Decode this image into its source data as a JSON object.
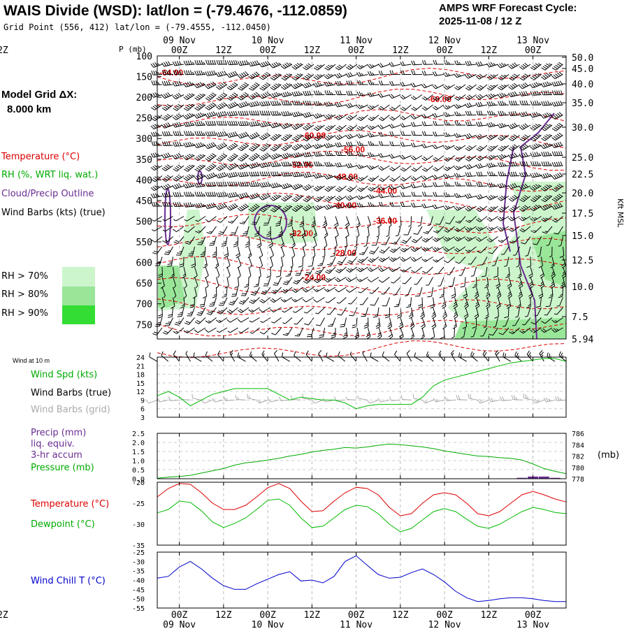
{
  "header": {
    "title": "WAIS Divide (WSD):  lat/lon = (-79.4676, -112.0859)",
    "subtitle": "Grid Point (556, 412) lat/lon = (-79.4555, -112.0450)",
    "cycle_label": "AMPS WRF Forecast Cycle:",
    "cycle_value": "2025-11-08 / 12  Z"
  },
  "model_grid": {
    "label": "Model Grid ΔX:",
    "value": "8.000 km"
  },
  "legend": {
    "temperature": "Temperature (°C)",
    "rh": "RH (%, WRT liq. wat.)",
    "cloud": "Cloud/Precip Outline",
    "wind": "Wind Barbs (kts) (true)",
    "rh70": "RH > 70%",
    "rh80": "RH > 80%",
    "rh90": "RH > 90%"
  },
  "colors": {
    "temperature": "#dd0000",
    "rh": "#00bb00",
    "cloud": "#6a2c91",
    "wind_grid": "#aaaaaa",
    "pressure": "#00aa00",
    "dewpoint": "#00bb00",
    "windchill": "#0000cc",
    "rh70": "#ccf5cc",
    "rh80": "#99e699",
    "rh90": "#33dd33"
  },
  "time_axis": {
    "hours": [
      "00Z",
      "12Z",
      "00Z",
      "12Z",
      "00Z",
      "12Z",
      "00Z",
      "12Z",
      "00Z",
      "12Z"
    ],
    "dates": [
      "09 Nov",
      "",
      "10 Nov",
      "",
      "11 Nov",
      "",
      "12 Nov",
      "",
      "13 Nov",
      ""
    ]
  },
  "chart_data": [
    {
      "type": "contour",
      "name": "cross-section",
      "ylabel": "P (mb)",
      "ylabel_right": "Kft MSL",
      "x_range_hours": [
        9,
        120
      ],
      "p_range": [
        100,
        785
      ],
      "p_ticks": [
        "100",
        "150",
        "200",
        "250",
        "300",
        "350",
        "400",
        "450",
        "500",
        "550",
        "600",
        "650",
        "700",
        "750"
      ],
      "kft_ticks": [
        "50.0",
        "45.0",
        "40.0",
        "35.0",
        "30.0",
        "25.0",
        "22.5",
        "20.0",
        "17.5",
        "15.0",
        "12.5",
        "10.0",
        "7.5",
        "5.94"
      ],
      "temp_labels": [
        "-64.00",
        "-60.00",
        "-60.00",
        "-56.00",
        "-52.00",
        "-48.00",
        "-44.00",
        "-40.00",
        "-36.00",
        "-32.00",
        "-28.00",
        "-24.00"
      ]
    },
    {
      "type": "line",
      "name": "wind-10m",
      "header": "Wind at 10 m",
      "labels": {
        "speed": "Wind Spd (kts)",
        "barbs_true": "Wind Barbs (true)",
        "barbs_grid": "Wind Barbs (grid)"
      },
      "ylim": [
        3,
        24
      ],
      "y_ticks": [
        "24",
        "21",
        "18",
        "15",
        "12",
        "9",
        "6",
        "3"
      ],
      "x_hours": [
        9,
        12,
        15,
        18,
        21,
        24,
        27,
        30,
        33,
        36,
        39,
        42,
        45,
        48,
        51,
        54,
        57,
        60,
        63,
        66,
        69,
        72,
        75,
        78,
        81,
        84,
        87,
        90,
        93,
        96,
        99,
        102,
        105,
        108,
        111,
        114,
        117,
        120
      ],
      "speed": [
        10.5,
        12,
        10,
        7,
        9,
        11,
        12,
        13,
        13,
        13,
        13,
        11,
        9,
        10,
        9.5,
        9,
        9,
        8,
        6,
        7,
        7.5,
        7.5,
        7.5,
        7.5,
        10,
        14,
        16,
        17,
        18,
        19,
        20,
        21,
        22,
        22.5,
        23,
        23.5,
        23.5,
        22.5
      ]
    },
    {
      "type": "line",
      "name": "precip-pressure",
      "labels": {
        "precip": "Precip (mm)",
        "liq": "liq. equiv.",
        "accum": "3-hr accum",
        "pressure": "Pressure (mb)"
      },
      "left_ticks": [
        "2.5",
        "2.0",
        "1.5",
        "1.0",
        "0.5",
        "0.0"
      ],
      "right_ticks": [
        "786",
        "784",
        "782",
        "780",
        "778"
      ],
      "right_unit": "(mb)",
      "pressure_lim": [
        778,
        786
      ],
      "x_hours": [
        9,
        12,
        15,
        18,
        21,
        24,
        27,
        30,
        33,
        36,
        39,
        42,
        45,
        48,
        51,
        54,
        57,
        60,
        63,
        66,
        69,
        72,
        75,
        78,
        81,
        84,
        87,
        90,
        93,
        96,
        99,
        102,
        105,
        108,
        111,
        114,
        117,
        120
      ],
      "pressure": [
        778.1,
        778.3,
        778.4,
        778.6,
        779.0,
        779.4,
        779.8,
        780.4,
        780.8,
        781.0,
        781.3,
        781.6,
        782.0,
        782.3,
        782.7,
        783.0,
        783.2,
        783.5,
        783.4,
        783.6,
        783.9,
        784.1,
        784.0,
        783.8,
        783.6,
        783.3,
        782.9,
        782.6,
        782.3,
        782.0,
        781.9,
        781.7,
        781.6,
        781.3,
        780.6,
        779.8,
        779.3,
        778.9
      ],
      "precip_hours": [
        108,
        111,
        114,
        117
      ],
      "precip": [
        0.05,
        0.12,
        0.12,
        0.05
      ]
    },
    {
      "type": "line",
      "name": "temperature-dewpoint",
      "labels": {
        "temperature": "Temperature (°C)",
        "dewpoint": "Dewpoint (°C)"
      },
      "ylim": [
        -35,
        -20
      ],
      "y_ticks": [
        "-20",
        "-25",
        "-30",
        "-35"
      ],
      "x_hours": [
        9,
        12,
        15,
        18,
        21,
        24,
        27,
        30,
        33,
        36,
        39,
        42,
        45,
        48,
        51,
        54,
        57,
        60,
        63,
        66,
        69,
        72,
        75,
        78,
        81,
        84,
        87,
        90,
        93,
        96,
        99,
        102,
        105,
        108,
        111,
        114,
        117,
        120
      ],
      "temperature": [
        -23.5,
        -21.5,
        -20.3,
        -20.5,
        -22.5,
        -25,
        -26.5,
        -26.5,
        -25.5,
        -23.5,
        -21.3,
        -20.3,
        -21.5,
        -24.5,
        -27,
        -26.8,
        -24.5,
        -22.5,
        -21.2,
        -21.5,
        -23,
        -26,
        -28,
        -27.5,
        -25,
        -23,
        -22.5,
        -23,
        -25,
        -27.5,
        -28,
        -27,
        -25,
        -23,
        -22.2,
        -23,
        -24,
        -24.7
      ],
      "dewpoint": [
        -27.3,
        -26.5,
        -24.5,
        -24.8,
        -26.8,
        -29.5,
        -30.8,
        -29.8,
        -28.5,
        -26.5,
        -24.3,
        -24,
        -25.5,
        -28.5,
        -30.8,
        -30.5,
        -28.5,
        -26.5,
        -25.5,
        -25.8,
        -27.5,
        -30,
        -31.8,
        -31,
        -29,
        -27,
        -26.3,
        -27,
        -28.8,
        -30.5,
        -31,
        -30,
        -28.5,
        -27,
        -26,
        -26.5,
        -27.2,
        -27.5
      ]
    },
    {
      "type": "line",
      "name": "wind-chill",
      "labels": {
        "windchill": "Wind Chill T (°C)"
      },
      "ylim": [
        -55,
        -25
      ],
      "y_ticks": [
        "-25",
        "-30",
        "-35",
        "-40",
        "-45",
        "-50",
        "-55"
      ],
      "x_hours": [
        9,
        12,
        15,
        18,
        21,
        24,
        27,
        30,
        33,
        36,
        39,
        42,
        45,
        48,
        51,
        54,
        57,
        60,
        63,
        66,
        69,
        72,
        75,
        78,
        81,
        84,
        87,
        90,
        93,
        96,
        99,
        102,
        105,
        108,
        111,
        114,
        117,
        120
      ],
      "windchill": [
        -39,
        -38,
        -33,
        -30,
        -34,
        -39,
        -43,
        -45,
        -45,
        -42,
        -39.5,
        -37,
        -35.5,
        -40.5,
        -40,
        -41.5,
        -38,
        -30,
        -27,
        -32,
        -37,
        -39,
        -38.5,
        -36,
        -34,
        -37,
        -41,
        -46,
        -49.5,
        -51.5,
        -51,
        -50,
        -49.5,
        -49.5,
        -50,
        -51,
        -51.5,
        -51.5
      ]
    }
  ]
}
